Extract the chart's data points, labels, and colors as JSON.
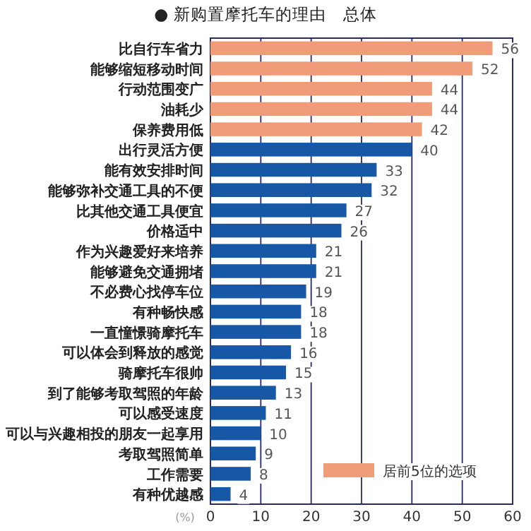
{
  "chart_data": {
    "type": "bar",
    "orientation": "horizontal",
    "stacked": true,
    "title": "● 新购置摩托车的理由　总体",
    "xlabel": "(%)",
    "categories": [
      "比自行车省力",
      "能够缩短移动时间",
      "行动范围变广",
      "油耗少",
      "保养费用低",
      "出行灵活方便",
      "能有效安排时间",
      "能够弥补交通工具的不便",
      "比其他交通工具便宜",
      "价格适中",
      "作为兴趣爱好来培养",
      "能够避免交通拥堵",
      "不必费心找停车位",
      "有种畅快感",
      "一直憧憬骑摩托车",
      "可以体会到释放的感觉",
      "骑摩托车很帅",
      "到了能够考取驾照的年龄",
      "可以感受速度",
      "可以与兴趣相投的朋友一起享用",
      "考取驾照简单",
      "工作需要",
      "有种优越感"
    ],
    "series": [
      {
        "name": "居前5位的选项",
        "color": "#f09c78",
        "values": [
          56,
          52,
          44,
          44,
          42,
          null,
          null,
          null,
          null,
          null,
          null,
          null,
          null,
          null,
          null,
          null,
          null,
          null,
          null,
          null,
          null,
          null,
          null
        ]
      },
      {
        "color": "#1657a6",
        "values": [
          null,
          null,
          null,
          null,
          null,
          40,
          33,
          32,
          27,
          26,
          21,
          21,
          19,
          18,
          18,
          16,
          15,
          13,
          11,
          10,
          9,
          8,
          4
        ]
      }
    ],
    "data_labels": true,
    "xlim": [
      0,
      60
    ],
    "xticks": [
      0,
      10,
      20,
      30,
      40,
      50,
      60
    ],
    "grid": "x",
    "legend": "bottom right"
  }
}
